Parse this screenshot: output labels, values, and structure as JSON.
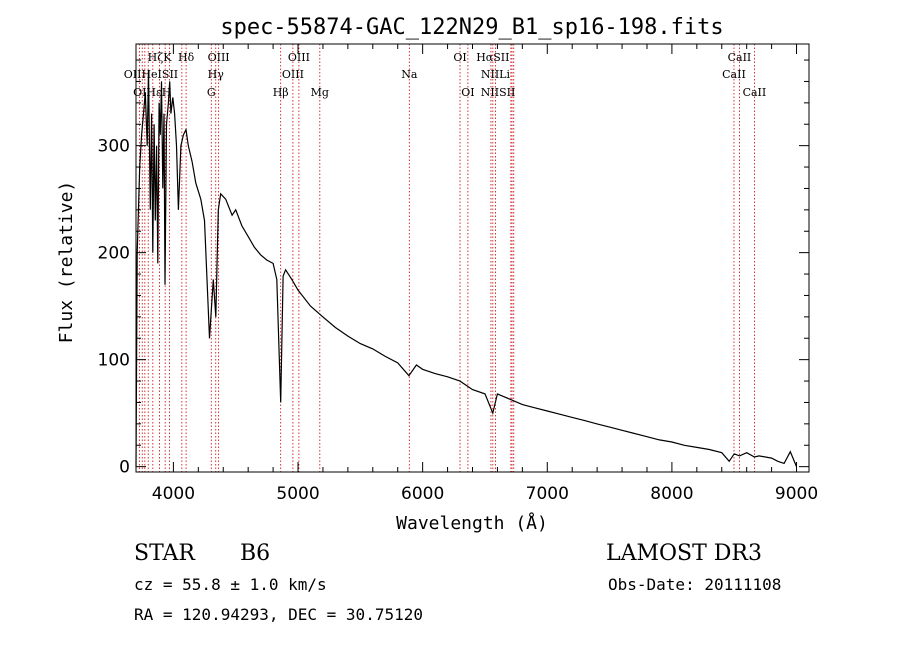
{
  "chart_data": {
    "type": "line",
    "title": "spec-55874-GAC_122N29_B1_sp16-198.fits",
    "xlabel": "Wavelength (Å)",
    "ylabel": "Flux (relative)",
    "xlim": [
      3700,
      9100
    ],
    "ylim": [
      -5,
      395
    ],
    "xticks": [
      4000,
      5000,
      6000,
      7000,
      8000,
      9000
    ],
    "yticks": [
      0,
      100,
      200,
      300
    ],
    "grid": false,
    "series": [
      {
        "name": "flux",
        "x": [
          3700,
          3710,
          3730,
          3745,
          3760,
          3775,
          3790,
          3800,
          3815,
          3825,
          3835,
          3845,
          3855,
          3865,
          3875,
          3885,
          3895,
          3905,
          3915,
          3925,
          3933,
          3945,
          3960,
          3970,
          3980,
          3995,
          4010,
          4025,
          4040,
          4060,
          4080,
          4101,
          4120,
          4150,
          4180,
          4220,
          4250,
          4290,
          4320,
          4340,
          4360,
          4380,
          4420,
          4471,
          4500,
          4550,
          4600,
          4650,
          4700,
          4750,
          4800,
          4830,
          4861,
          4880,
          4900,
          4950,
          5000,
          5100,
          5200,
          5300,
          5400,
          5500,
          5600,
          5700,
          5800,
          5890,
          5950,
          6000,
          6100,
          6200,
          6300,
          6400,
          6500,
          6563,
          6600,
          6700,
          6800,
          6900,
          7000,
          7100,
          7200,
          7300,
          7400,
          7500,
          7600,
          7700,
          7800,
          7900,
          8000,
          8100,
          8200,
          8300,
          8400,
          8460,
          8500,
          8542,
          8600,
          8662,
          8700,
          8800,
          8850,
          8900,
          8950,
          9000
        ],
        "y": [
          0,
          200,
          280,
          310,
          330,
          350,
          300,
          370,
          240,
          330,
          200,
          320,
          230,
          300,
          190,
          340,
          310,
          360,
          260,
          330,
          170,
          320,
          340,
          360,
          330,
          345,
          330,
          300,
          240,
          300,
          310,
          315,
          300,
          285,
          265,
          250,
          230,
          120,
          175,
          140,
          240,
          255,
          250,
          235,
          240,
          225,
          215,
          205,
          198,
          193,
          190,
          175,
          60,
          178,
          184,
          175,
          165,
          150,
          140,
          130,
          122,
          115,
          110,
          103,
          97,
          85,
          95,
          91,
          87,
          84,
          80,
          72,
          68,
          50,
          68,
          63,
          58,
          55,
          52,
          49,
          46,
          43,
          40,
          37,
          34,
          31,
          28,
          25,
          23,
          20,
          18,
          16,
          13,
          5,
          12,
          10,
          13,
          9,
          10,
          8,
          5,
          3,
          14,
          0
        ]
      }
    ],
    "spectral_lines": [
      {
        "label": "HζK",
        "wl": 3889,
        "row": 1
      },
      {
        "label": "Hδ",
        "wl": 4102,
        "row": 1
      },
      {
        "label": "OIII",
        "wl": 4363,
        "row": 1
      },
      {
        "label": "OIII",
        "wl": 5007,
        "row": 1
      },
      {
        "label": "OI",
        "wl": 6300,
        "row": 1
      },
      {
        "label": "HαSII",
        "wl": 6563,
        "row": 1
      },
      {
        "label": "CaII",
        "wl": 8542,
        "row": 1
      },
      {
        "label": "OIIHeISII",
        "wl": 3820,
        "row": 2
      },
      {
        "label": "Hγ",
        "wl": 4340,
        "row": 2
      },
      {
        "label": "OIII",
        "wl": 4959,
        "row": 2
      },
      {
        "label": "Na",
        "wl": 5893,
        "row": 2
      },
      {
        "label": "NIILi",
        "wl": 6584,
        "row": 2
      },
      {
        "label": "CaII",
        "wl": 8498,
        "row": 2
      },
      {
        "label": "OIHεH",
        "wl": 3830,
        "row": 3
      },
      {
        "label": "G",
        "wl": 4304,
        "row": 3
      },
      {
        "label": "Hβ",
        "wl": 4861,
        "row": 3
      },
      {
        "label": "Mg",
        "wl": 5175,
        "row": 3
      },
      {
        "label": "OI",
        "wl": 6363,
        "row": 3
      },
      {
        "label": "NIISII",
        "wl": 6605,
        "row": 3
      },
      {
        "label": "CaII",
        "wl": 8662,
        "row": 3
      }
    ],
    "line_markers": [
      3727,
      3750,
      3771,
      3798,
      3835,
      3889,
      3934,
      3968,
      4068,
      4102,
      4304,
      4340,
      4363,
      4861,
      4959,
      5007,
      5175,
      5893,
      6300,
      6363,
      6548,
      6563,
      6584,
      6708,
      6717,
      6731,
      8498,
      8542,
      8662
    ]
  },
  "info": {
    "object_class": "STAR",
    "subclass": "B6",
    "survey": "LAMOST DR3",
    "cz": "cz = 55.8 ± 1.0 km/s",
    "obs_date": "Obs-Date: 20111108",
    "radec": "RA = 120.94293, DEC =  30.75120"
  }
}
